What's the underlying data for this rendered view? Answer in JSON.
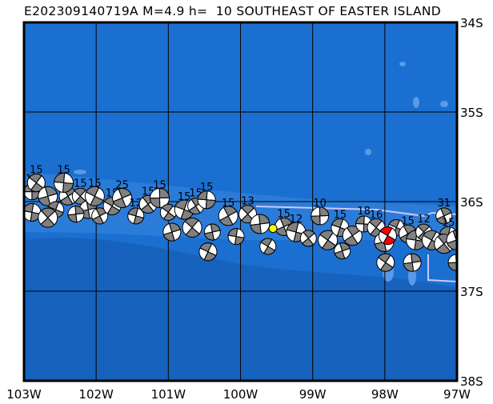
{
  "title": "E202309140719A M=4.9 h=  10 SOUTHEAST OF EASTER ISLAND",
  "map": {
    "lon_range": [
      -103,
      -97
    ],
    "lat_range": [
      -38,
      -34
    ],
    "lon_ticks": [
      {
        "v": -103,
        "label": "103W"
      },
      {
        "v": -102,
        "label": "102W"
      },
      {
        "v": -101,
        "label": "101W"
      },
      {
        "v": -100,
        "label": "100W"
      },
      {
        "v": -99,
        "label": "99W"
      },
      {
        "v": -98,
        "label": "98W"
      },
      {
        "v": -97,
        "label": "97W"
      }
    ],
    "lat_ticks": [
      {
        "v": -34,
        "label": "34S"
      },
      {
        "v": -35,
        "label": "35S"
      },
      {
        "v": -36,
        "label": "36S"
      },
      {
        "v": -37,
        "label": "37S"
      },
      {
        "v": -38,
        "label": "38S"
      }
    ],
    "colors": {
      "ocean": "#1a6fd0",
      "deep": "#1762bd",
      "ridge": "#3a86e0",
      "patch": "#5a9ae6",
      "plate_boundary": "#c8c8ff",
      "compression": "#808080",
      "current_event": "#ff0000",
      "highlight_event": "#ffff00"
    }
  },
  "current_event": {
    "lon": -97.96,
    "lat": -36.38
  },
  "highlight_event": {
    "lon": -99.55,
    "lat": -36.3
  },
  "events": [
    {
      "lon": -102.89,
      "lat": -35.89,
      "label": "10"
    },
    {
      "lon": -102.83,
      "lat": -35.79,
      "label": "15"
    },
    {
      "lon": -102.67,
      "lat": -35.94,
      "label": ""
    },
    {
      "lon": -102.56,
      "lat": -36.09,
      "label": ""
    },
    {
      "lon": -102.39,
      "lat": -35.94,
      "label": "13"
    },
    {
      "lon": -102.45,
      "lat": -35.79,
      "label": "15"
    },
    {
      "lon": -102.22,
      "lat": -35.94,
      "label": "15"
    },
    {
      "lon": -102.11,
      "lat": -36.09,
      "label": ""
    },
    {
      "lon": -102.02,
      "lat": -35.94,
      "label": "15"
    },
    {
      "lon": -101.95,
      "lat": -36.16,
      "label": ""
    },
    {
      "lon": -102.89,
      "lat": -36.12,
      "label": ""
    },
    {
      "lon": -102.67,
      "lat": -36.18,
      "label": ""
    },
    {
      "lon": -102.28,
      "lat": -36.14,
      "label": ""
    },
    {
      "lon": -101.78,
      "lat": -36.05,
      "label": "15"
    },
    {
      "lon": -101.64,
      "lat": -35.96,
      "label": "25"
    },
    {
      "lon": -101.45,
      "lat": -36.16,
      "label": "12"
    },
    {
      "lon": -101.28,
      "lat": -36.03,
      "label": "15"
    },
    {
      "lon": -101.12,
      "lat": -35.96,
      "label": "15"
    },
    {
      "lon": -101.0,
      "lat": -36.12,
      "label": ""
    },
    {
      "lon": -100.95,
      "lat": -36.34,
      "label": ""
    },
    {
      "lon": -100.78,
      "lat": -36.09,
      "label": "15"
    },
    {
      "lon": -100.62,
      "lat": -36.05,
      "label": "15"
    },
    {
      "lon": -100.47,
      "lat": -35.98,
      "label": "15"
    },
    {
      "lon": -100.67,
      "lat": -36.29,
      "label": ""
    },
    {
      "lon": -100.39,
      "lat": -36.34,
      "label": ""
    },
    {
      "lon": -100.45,
      "lat": -36.56,
      "label": ""
    },
    {
      "lon": -100.17,
      "lat": -36.16,
      "label": "15"
    },
    {
      "lon": -100.06,
      "lat": -36.39,
      "label": ""
    },
    {
      "lon": -99.9,
      "lat": -36.14,
      "label": "13"
    },
    {
      "lon": -99.73,
      "lat": -36.25,
      "label": ""
    },
    {
      "lon": -99.62,
      "lat": -36.5,
      "label": ""
    },
    {
      "lon": -99.4,
      "lat": -36.28,
      "label": "15"
    },
    {
      "lon": -99.23,
      "lat": -36.34,
      "label": "12"
    },
    {
      "lon": -99.06,
      "lat": -36.41,
      "label": ""
    },
    {
      "lon": -98.9,
      "lat": -36.16,
      "label": "10"
    },
    {
      "lon": -98.79,
      "lat": -36.43,
      "label": ""
    },
    {
      "lon": -98.59,
      "lat": -36.55,
      "label": ""
    },
    {
      "lon": -98.62,
      "lat": -36.29,
      "label": "15"
    },
    {
      "lon": -98.45,
      "lat": -36.38,
      "label": ""
    },
    {
      "lon": -98.29,
      "lat": -36.25,
      "label": "18"
    },
    {
      "lon": -98.12,
      "lat": -36.29,
      "label": "16"
    },
    {
      "lon": -98.01,
      "lat": -36.45,
      "label": ""
    },
    {
      "lon": -97.84,
      "lat": -36.29,
      "label": ""
    },
    {
      "lon": -97.68,
      "lat": -36.36,
      "label": "15"
    },
    {
      "lon": -97.57,
      "lat": -36.43,
      "label": ""
    },
    {
      "lon": -97.46,
      "lat": -36.34,
      "label": "12"
    },
    {
      "lon": -97.62,
      "lat": -36.68,
      "label": ""
    },
    {
      "lon": -97.35,
      "lat": -36.43,
      "label": ""
    },
    {
      "lon": -97.18,
      "lat": -36.16,
      "label": "31"
    },
    {
      "lon": -97.12,
      "lat": -36.38,
      "label": "15"
    },
    {
      "lon": -97.18,
      "lat": -36.47,
      "label": ""
    },
    {
      "lon": -97.01,
      "lat": -36.68,
      "label": ""
    },
    {
      "lon": -97.99,
      "lat": -36.68,
      "label": ""
    },
    {
      "lon": -97.01,
      "lat": -36.43,
      "label": ""
    }
  ]
}
